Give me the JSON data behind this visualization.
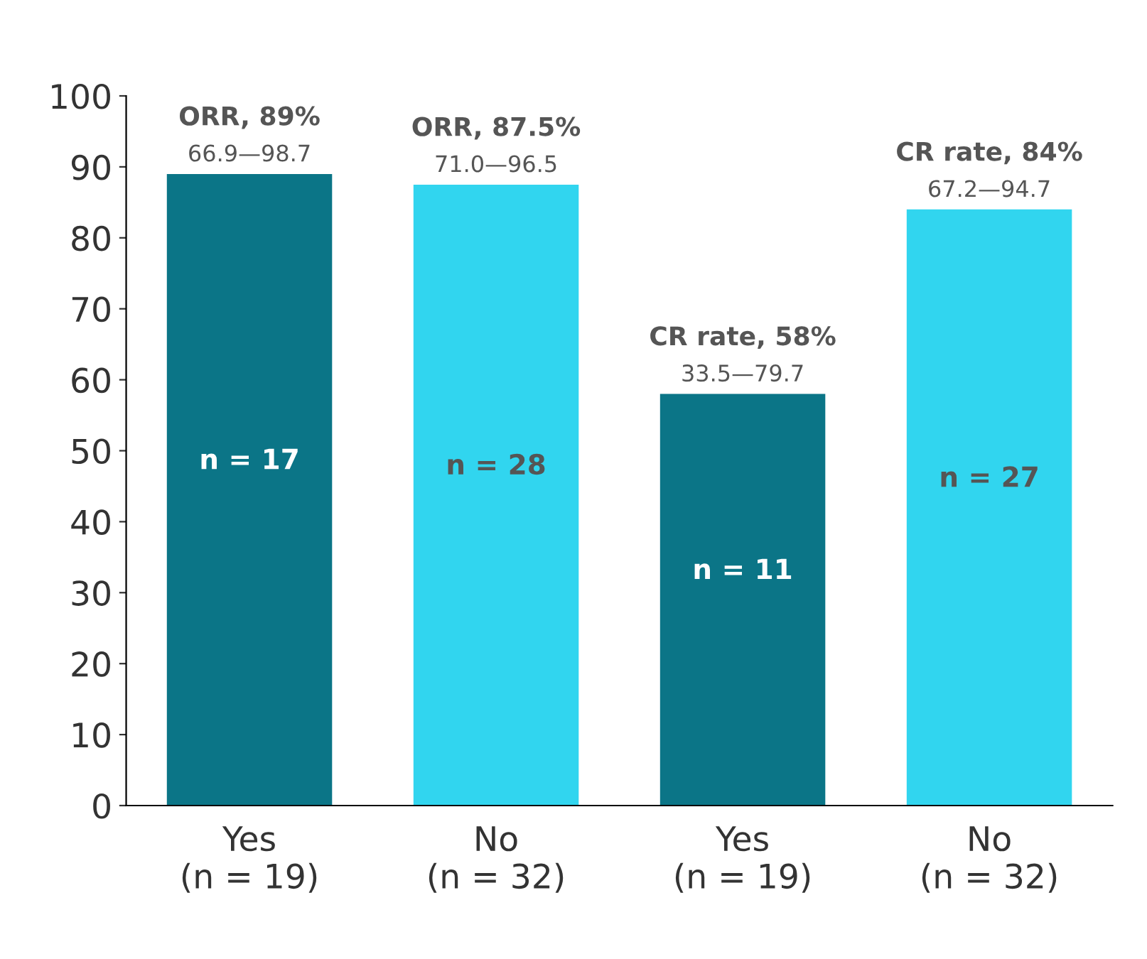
{
  "chart_data": {
    "type": "bar",
    "categories": [
      "Yes\n(n = 19)",
      "No\n(n = 32)",
      "Yes\n(n = 19)",
      "No\n(n = 32)"
    ],
    "values": [
      89,
      87.5,
      58,
      84
    ],
    "colors": [
      "#0b7587",
      "#31d5ef",
      "#0b7587",
      "#31d5ef"
    ],
    "value_labels": [
      "ORR, 89%\n66.9—98.7",
      "ORR, 87.5%\n71.0—96.5",
      "CR rate, 58%\n33.5—79.7",
      "CR rate, 84%\n67.2—94.7"
    ],
    "annotations": [
      "n = 17",
      "n = 28",
      "n = 11",
      "n = 27"
    ],
    "ylim": [
      0,
      100
    ],
    "yticks": [
      0,
      10,
      20,
      30,
      40,
      50,
      60,
      70,
      80,
      90,
      100
    ],
    "grid": false,
    "legend": false
  }
}
